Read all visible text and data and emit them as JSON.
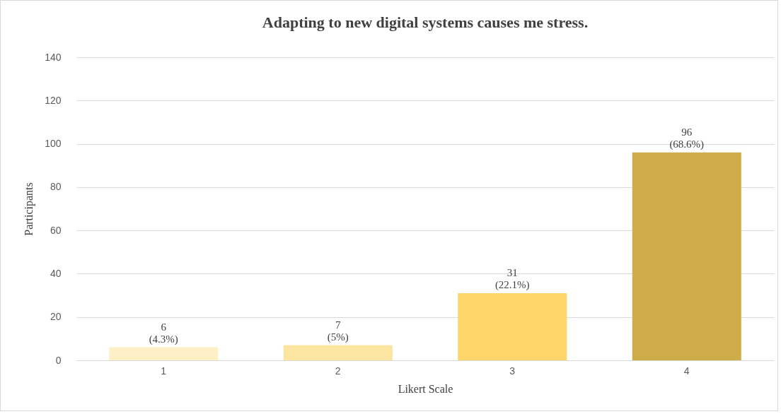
{
  "chart_data": {
    "type": "bar",
    "title": "Adapting to new digital systems causes me stress.",
    "xlabel": "Likert Scale",
    "ylabel": "Participants",
    "categories": [
      "1",
      "2",
      "3",
      "4"
    ],
    "values": [
      6,
      7,
      31,
      96
    ],
    "colors": [
      "#fdf0c6",
      "#fce5a0",
      "#fcd669",
      "#cfac4a"
    ],
    "value_labels": [
      "6\n(4.3%)",
      "7\n(5%)",
      "31\n(22.1%)",
      "96\n(68.6%)"
    ],
    "ylim": [
      0,
      140
    ],
    "yticks": [
      0,
      20,
      40,
      60,
      80,
      100,
      120,
      140
    ],
    "grid": "y"
  }
}
